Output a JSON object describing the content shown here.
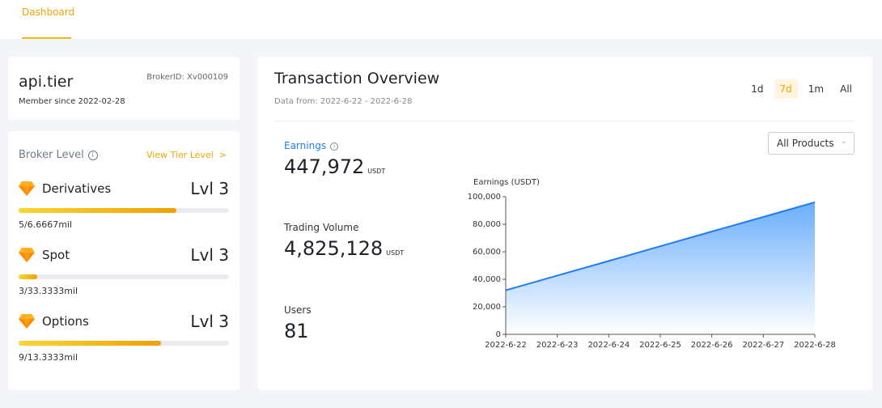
{
  "nav": {
    "tab": "Dashboard"
  },
  "profile": {
    "name": "api.tier",
    "member_since": "Member since 2022-02-28",
    "broker_id": "BrokerID: Xv000109"
  },
  "broker_level": {
    "title": "Broker Level",
    "info_icon": "info-icon",
    "view_link": "View Tier Level",
    "view_link_arrow": ">",
    "tiers": [
      {
        "name": "Derivatives",
        "level": "Lvl 3",
        "progress_text": "5/6.6667mil",
        "progress": 0.75
      },
      {
        "name": "Spot",
        "level": "Lvl 3",
        "progress_text": "3/33.3333mil",
        "progress": 0.09
      },
      {
        "name": "Options",
        "level": "Lvl 3",
        "progress_text": "9/13.3333mil",
        "progress": 0.675
      }
    ],
    "accent": "#f0b90b"
  },
  "overview": {
    "title": "Transaction Overview",
    "subtitle": "Data from: 2022-6-22 - 2022-6-28",
    "periods": [
      "1d",
      "7d",
      "1m",
      "All"
    ],
    "active_period": "7d",
    "product_select": "All Products",
    "metrics": [
      {
        "label": "Earnings",
        "value": "447,972",
        "unit": "USDT"
      },
      {
        "label": "Trading Volume",
        "value": "4,825,128",
        "unit": "USDT"
      },
      {
        "label": "Users",
        "value": "81",
        "unit": ""
      }
    ]
  },
  "chart_data": {
    "type": "area",
    "ylabel": "Earnings (USDT)",
    "x": [
      "2022-6-22",
      "2022-6-23",
      "2022-6-24",
      "2022-6-25",
      "2022-6-26",
      "2022-6-27",
      "2022-6-28"
    ],
    "values": [
      32000,
      42700,
      53300,
      64000,
      74700,
      85300,
      96000
    ],
    "ylim": [
      0,
      100000
    ],
    "yticks": [
      0,
      20000,
      40000,
      60000,
      80000,
      100000
    ],
    "grid": false,
    "color": "#1f7cf2"
  }
}
